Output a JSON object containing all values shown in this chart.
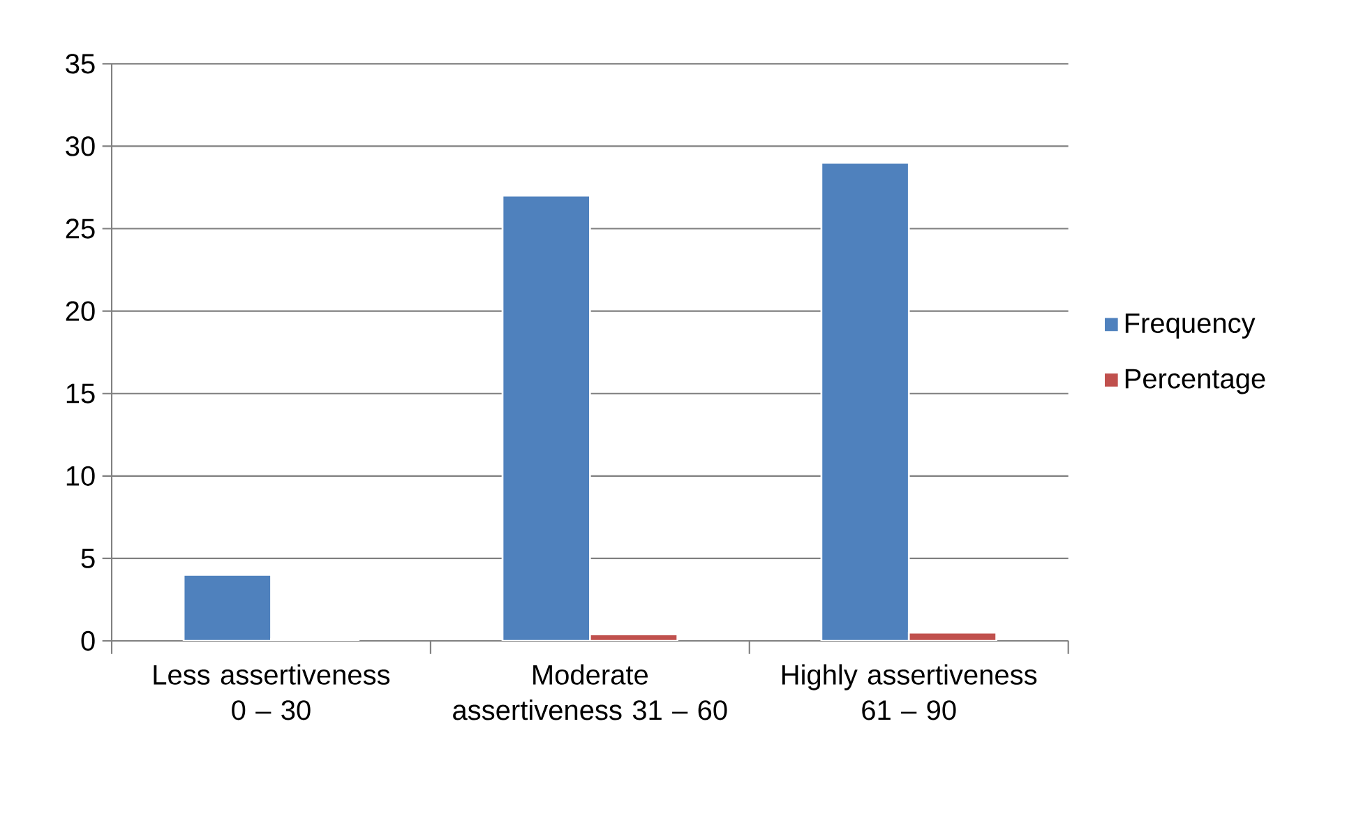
{
  "chart_data": {
    "type": "bar",
    "categories": [
      "Less assertiveness 0 – 30",
      "Moderate assertiveness 31 – 60",
      "Highly assertiveness 61 – 90"
    ],
    "series": [
      {
        "name": "Frequency",
        "color": "#4f81bd",
        "values": [
          4,
          27,
          29
        ]
      },
      {
        "name": "Percentage",
        "color": "#c0504d",
        "values": [
          0.1,
          0.4,
          0.5
        ]
      }
    ],
    "ylim": [
      0,
      35
    ],
    "yticks": [
      0,
      5,
      10,
      15,
      20,
      25,
      30,
      35
    ],
    "grid": "y",
    "legend": "right"
  }
}
